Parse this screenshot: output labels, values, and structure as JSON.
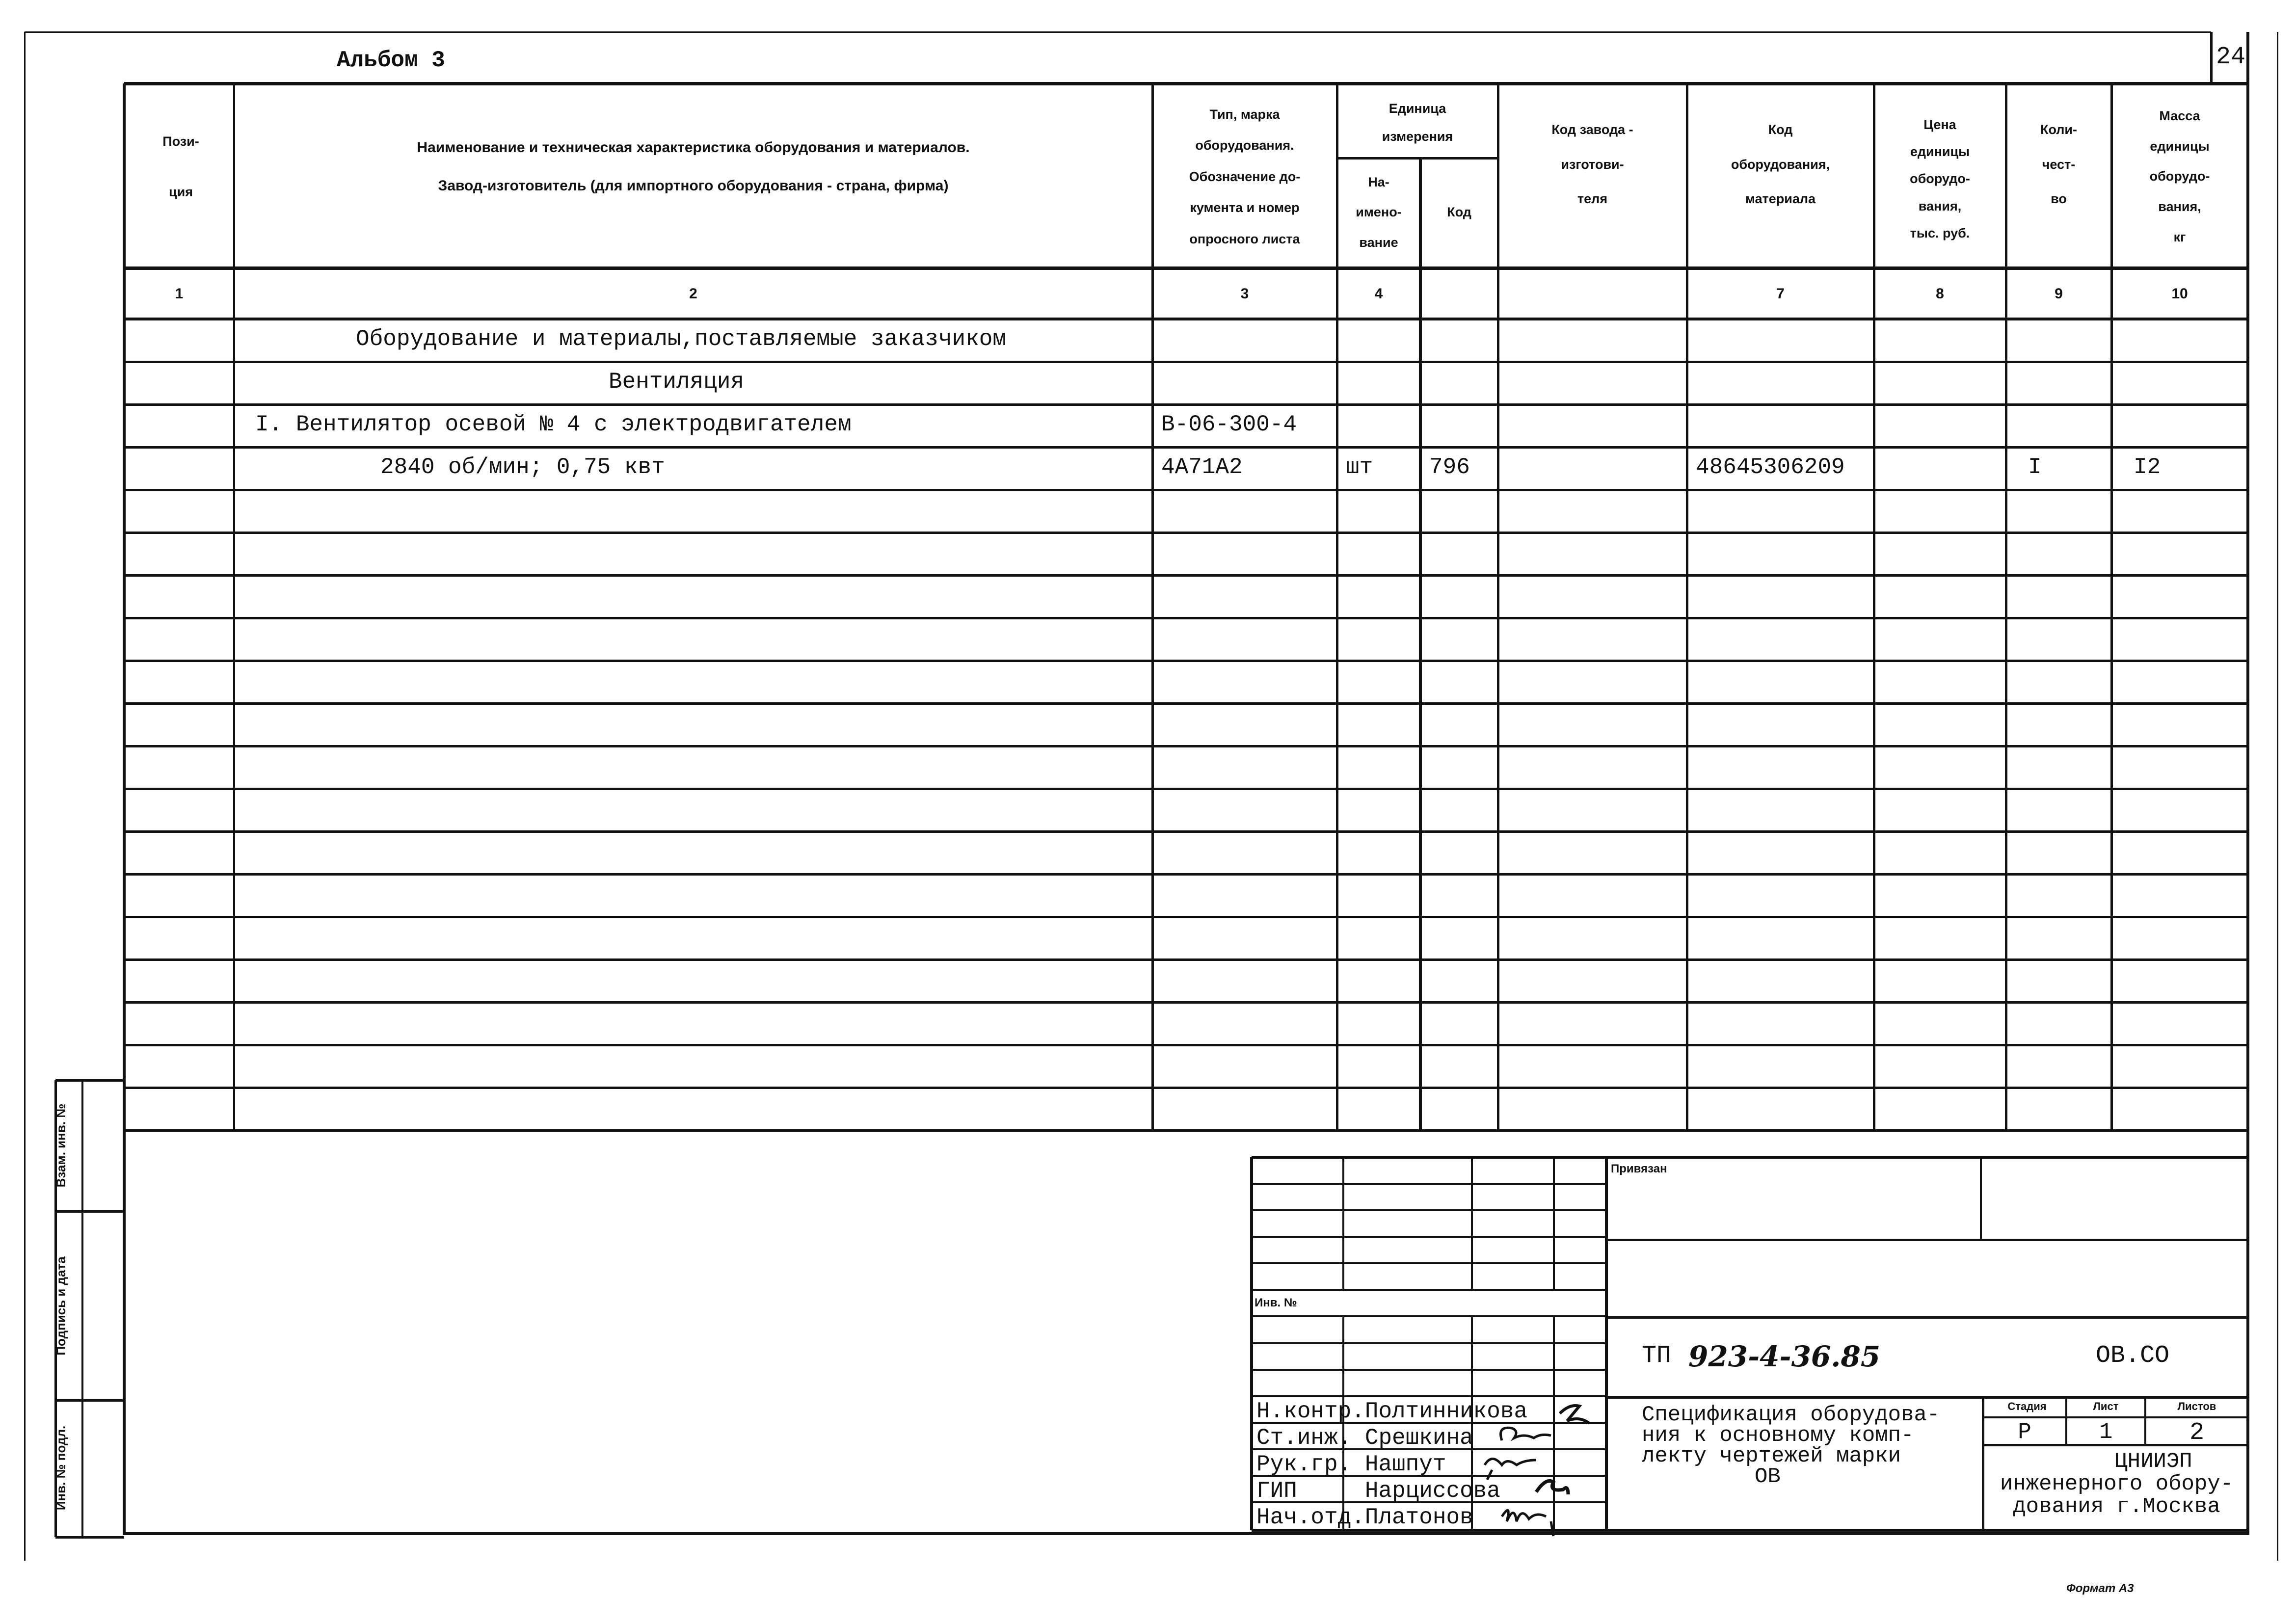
{
  "album_label": "Альбом 3",
  "sheet_number": "24",
  "table": {
    "headers": {
      "col1": [
        "Пози-",
        "ция"
      ],
      "col2": [
        "Наименование и техническая характеристика  оборудования и материалов.",
        "Завод-изготовитель  (для импортного оборудования -  страна, фирма)"
      ],
      "col3": [
        "Тип,    марка",
        "оборудования.",
        "Обозначение  до-",
        "кумента  и  номер",
        "опросного  листа"
      ],
      "col4_group": [
        "Единица",
        "измерения"
      ],
      "col4a": [
        "На-",
        "имено-",
        "вание"
      ],
      "col4b": [
        "Код"
      ],
      "col5": [
        "Код  завода -",
        "изготови-",
        "теля"
      ],
      "col7": [
        "Код",
        "оборудования,",
        "материала"
      ],
      "col8": [
        "Цена",
        "единицы",
        "оборудо-",
        "вания,",
        "тыс. руб."
      ],
      "col9": [
        "Коли-",
        "чест-",
        "во"
      ],
      "col10": [
        "Масса",
        "единицы",
        "оборудо-",
        "вания,",
        "кг"
      ]
    },
    "column_numbers": [
      "1",
      "2",
      "3",
      "4",
      "",
      "",
      "7",
      "8",
      "9",
      "10"
    ],
    "rows": [
      {
        "name": "Оборудование и материалы,поставляемые заказчиком",
        "type": "",
        "unit": "",
        "unit_code": "",
        "maker_code": "",
        "equip_code": "",
        "price": "",
        "qty": "",
        "mass": ""
      },
      {
        "name": "Вентиляция",
        "type": "",
        "unit": "",
        "unit_code": "",
        "maker_code": "",
        "equip_code": "",
        "price": "",
        "qty": "",
        "mass": ""
      },
      {
        "name": "I. Вентилятор осевой № 4 с электродвигателем",
        "type": "В-06-300-4",
        "unit": "",
        "unit_code": "",
        "maker_code": "",
        "equip_code": "",
        "price": "",
        "qty": "",
        "mass": ""
      },
      {
        "name": "2840 об/мин; 0,75 квт",
        "type": "4А71А2",
        "unit": "шт",
        "unit_code": "796",
        "maker_code": "",
        "equip_code": "48645306209",
        "price": "",
        "qty": "I",
        "mass": "I2"
      }
    ]
  },
  "side_stamp": [
    "Взам. инв. №",
    "Подпись и дата",
    "Инв. № подл."
  ],
  "title_block": {
    "linked_label": "Привязан",
    "inv_label": "Инв. №",
    "project_prefix": "ТП",
    "project_number": "923-4-36.85",
    "doc_code": "ОВ.СО",
    "signatories": [
      {
        "role": "Н.контр.",
        "name": "Полтинникова"
      },
      {
        "role": "Ст.инж.",
        "name": " Срешкина"
      },
      {
        "role": "Рук.гр.",
        "name": " Нашпут"
      },
      {
        "role": "ГИП",
        "name": "     Нарциссова"
      },
      {
        "role": "Нач.отд.",
        "name": "Платонов"
      }
    ],
    "description": [
      "Спецификация оборудова-",
      "ния к основному комп-",
      "лекту чертежей марки",
      "ОВ"
    ],
    "stage_label": "Стадия",
    "sheet_label": "Лист",
    "sheets_label": "Листов",
    "stage": "Р",
    "sheet": "1",
    "sheets": "2",
    "organization": [
      "ЦНИИЭП",
      "инженерного обору-",
      "дования г.Москва"
    ]
  },
  "format_label": "Формат А3"
}
